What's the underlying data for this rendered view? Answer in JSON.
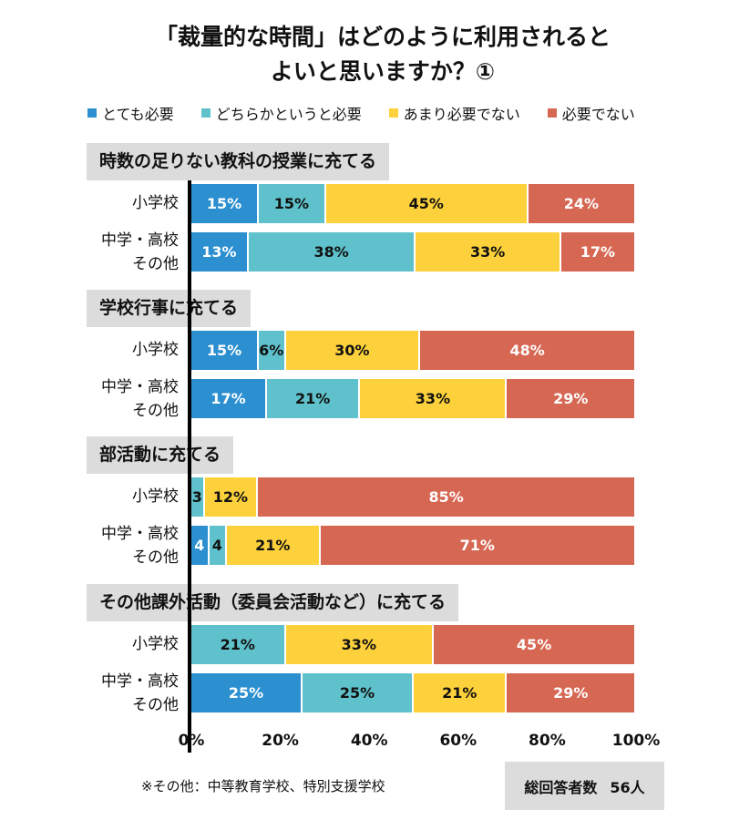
{
  "chart_data": {
    "type": "bar",
    "orientation": "horizontal",
    "stacked": true,
    "title": "「裁量的な時間」はどのように利用されると\nよいと思いますか？①",
    "legend": [
      "とても必要",
      "どちらかというと必要",
      "あまり必要でない",
      "必要でない"
    ],
    "legend_position": "top",
    "colors": [
      "#2b8fd0",
      "#5fc1cb",
      "#fdd13b",
      "#d66753"
    ],
    "label_colors": [
      "#ffffff",
      "#111111",
      "#111111",
      "#ffffff"
    ],
    "xlim": [
      0,
      100
    ],
    "x_ticks": [
      "0%",
      "20%",
      "40%",
      "60%",
      "80%",
      "100%"
    ],
    "groups": [
      {
        "title": "時数の足りない教科の授業に充てる",
        "rows": [
          {
            "label": "小学校",
            "values": [
              15,
              15,
              45,
              24
            ],
            "labels": [
              "15%",
              "15%",
              "45%",
              "24%"
            ]
          },
          {
            "label": "中学・高校\nその他",
            "values": [
              13,
              38,
              33,
              17
            ],
            "labels": [
              "13%",
              "38%",
              "33%",
              "17%"
            ]
          }
        ]
      },
      {
        "title": "学校行事に充てる",
        "rows": [
          {
            "label": "小学校",
            "values": [
              15,
              6,
              30,
              48
            ],
            "labels": [
              "15%",
              "6%",
              "30%",
              "48%"
            ]
          },
          {
            "label": "中学・高校\nその他",
            "values": [
              17,
              21,
              33,
              29
            ],
            "labels": [
              "17%",
              "21%",
              "33%",
              "29%"
            ]
          }
        ]
      },
      {
        "title": "部活動に充てる",
        "rows": [
          {
            "label": "小学校",
            "values": [
              0,
              3,
              12,
              85
            ],
            "labels": [
              "",
              "3",
              "12%",
              "85%"
            ]
          },
          {
            "label": "中学・高校\nその他",
            "values": [
              4,
              4,
              21,
              71
            ],
            "labels": [
              "4",
              "4",
              "21%",
              "71%"
            ]
          }
        ]
      },
      {
        "title": "その他課外活動（委員会活動など）に充てる",
        "rows": [
          {
            "label": "小学校",
            "values": [
              0,
              21,
              33,
              45
            ],
            "labels": [
              "",
              "21%",
              "33%",
              "45%"
            ]
          },
          {
            "label": "中学・高校\nその他",
            "values": [
              25,
              25,
              21,
              29
            ],
            "labels": [
              "25%",
              "25%",
              "21%",
              "29%"
            ]
          }
        ]
      }
    ]
  },
  "footnote": "※その他：中等教育学校、特別支援学校",
  "total": {
    "label": "総回答者数",
    "value": "56人"
  }
}
